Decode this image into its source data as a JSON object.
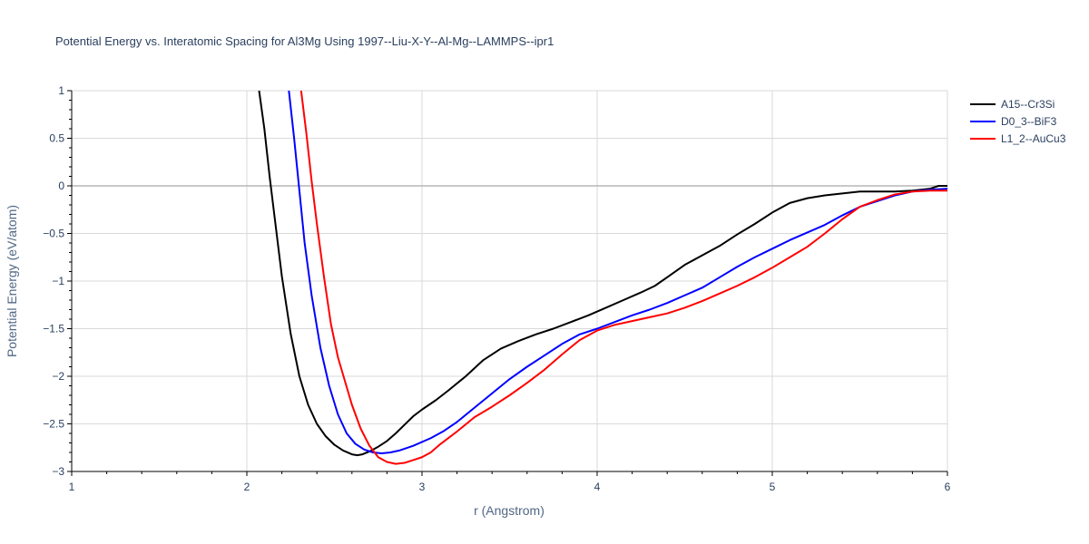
{
  "chart_data": {
    "type": "line",
    "title": "Potential Energy vs. Interatomic Spacing for Al3Mg Using 1997--Liu-X-Y--Al-Mg--LAMMPS--ipr1",
    "xlabel": "r (Angstrom)",
    "ylabel": "Potential Energy (eV/atom)",
    "xlim": [
      1,
      6
    ],
    "ylim": [
      -3,
      1
    ],
    "xticks": [
      1,
      2,
      3,
      4,
      5,
      6
    ],
    "xtick_labels": [
      "1",
      "2",
      "3",
      "4",
      "5",
      "6"
    ],
    "yticks": [
      1,
      0.5,
      0,
      -0.5,
      -1,
      -1.5,
      -2,
      -2.5,
      -3
    ],
    "ytick_labels": [
      "1",
      "0.5",
      "0",
      "−0.5",
      "−1",
      "−1.5",
      "−2",
      "−2.5",
      "−3"
    ],
    "grid": true,
    "legend_position": "top-right",
    "series": [
      {
        "name": "A15--Cr3Si",
        "color": "#000000",
        "x": [
          2.07,
          2.1,
          2.13,
          2.16,
          2.2,
          2.25,
          2.3,
          2.35,
          2.4,
          2.45,
          2.5,
          2.55,
          2.6,
          2.63,
          2.66,
          2.7,
          2.75,
          2.8,
          2.85,
          2.9,
          2.95,
          3.0,
          3.08,
          3.15,
          3.25,
          3.35,
          3.45,
          3.55,
          3.65,
          3.75,
          3.85,
          3.95,
          4.05,
          4.15,
          4.25,
          4.33,
          4.4,
          4.5,
          4.6,
          4.7,
          4.8,
          4.9,
          5.0,
          5.05,
          5.1,
          5.2,
          5.3,
          5.4,
          5.5,
          5.6,
          5.7,
          5.8,
          5.9,
          5.95,
          6.0
        ],
        "y": [
          1.0,
          0.6,
          0.1,
          -0.35,
          -0.95,
          -1.55,
          -2.0,
          -2.3,
          -2.5,
          -2.63,
          -2.72,
          -2.78,
          -2.82,
          -2.83,
          -2.82,
          -2.79,
          -2.74,
          -2.68,
          -2.6,
          -2.51,
          -2.42,
          -2.35,
          -2.25,
          -2.15,
          -2.0,
          -1.83,
          -1.71,
          -1.63,
          -1.56,
          -1.5,
          -1.43,
          -1.36,
          -1.28,
          -1.2,
          -1.12,
          -1.05,
          -0.96,
          -0.83,
          -0.73,
          -0.63,
          -0.51,
          -0.4,
          -0.28,
          -0.23,
          -0.18,
          -0.13,
          -0.1,
          -0.08,
          -0.06,
          -0.06,
          -0.06,
          -0.05,
          -0.03,
          0.0,
          0.0
        ]
      },
      {
        "name": "D0_3--BiF3",
        "color": "#0000ff",
        "x": [
          2.24,
          2.27,
          2.3,
          2.33,
          2.37,
          2.42,
          2.47,
          2.52,
          2.57,
          2.62,
          2.67,
          2.72,
          2.77,
          2.82,
          2.87,
          2.95,
          3.05,
          3.12,
          3.2,
          3.3,
          3.4,
          3.5,
          3.6,
          3.7,
          3.8,
          3.9,
          4.0,
          4.1,
          4.2,
          4.3,
          4.4,
          4.5,
          4.6,
          4.7,
          4.8,
          4.9,
          5.0,
          5.1,
          5.2,
          5.3,
          5.4,
          5.5,
          5.6,
          5.7,
          5.8,
          5.9,
          6.0
        ],
        "y": [
          1.0,
          0.5,
          -0.05,
          -0.6,
          -1.15,
          -1.7,
          -2.1,
          -2.4,
          -2.6,
          -2.71,
          -2.77,
          -2.8,
          -2.81,
          -2.8,
          -2.78,
          -2.73,
          -2.65,
          -2.58,
          -2.48,
          -2.33,
          -2.18,
          -2.03,
          -1.9,
          -1.78,
          -1.66,
          -1.56,
          -1.5,
          -1.43,
          -1.36,
          -1.3,
          -1.23,
          -1.15,
          -1.07,
          -0.96,
          -0.85,
          -0.75,
          -0.66,
          -0.57,
          -0.49,
          -0.41,
          -0.31,
          -0.22,
          -0.16,
          -0.1,
          -0.06,
          -0.04,
          -0.03
        ]
      },
      {
        "name": "L1_2--AuCu3",
        "color": "#ff0000",
        "x": [
          2.31,
          2.34,
          2.37,
          2.4,
          2.44,
          2.48,
          2.52,
          2.56,
          2.6,
          2.65,
          2.7,
          2.75,
          2.8,
          2.85,
          2.9,
          2.95,
          3.0,
          3.05,
          3.1,
          3.2,
          3.3,
          3.4,
          3.5,
          3.6,
          3.7,
          3.8,
          3.9,
          4.0,
          4.1,
          4.2,
          4.3,
          4.4,
          4.5,
          4.6,
          4.7,
          4.8,
          4.9,
          5.0,
          5.1,
          5.2,
          5.3,
          5.4,
          5.5,
          5.6,
          5.7,
          5.8,
          5.9,
          6.0
        ],
        "y": [
          1.0,
          0.55,
          0.05,
          -0.4,
          -0.95,
          -1.45,
          -1.8,
          -2.05,
          -2.3,
          -2.55,
          -2.73,
          -2.85,
          -2.9,
          -2.92,
          -2.91,
          -2.88,
          -2.85,
          -2.8,
          -2.72,
          -2.58,
          -2.43,
          -2.32,
          -2.2,
          -2.07,
          -1.93,
          -1.77,
          -1.62,
          -1.52,
          -1.46,
          -1.42,
          -1.38,
          -1.34,
          -1.28,
          -1.21,
          -1.13,
          -1.05,
          -0.96,
          -0.86,
          -0.75,
          -0.64,
          -0.5,
          -0.35,
          -0.22,
          -0.15,
          -0.09,
          -0.06,
          -0.05,
          -0.05
        ]
      }
    ]
  }
}
